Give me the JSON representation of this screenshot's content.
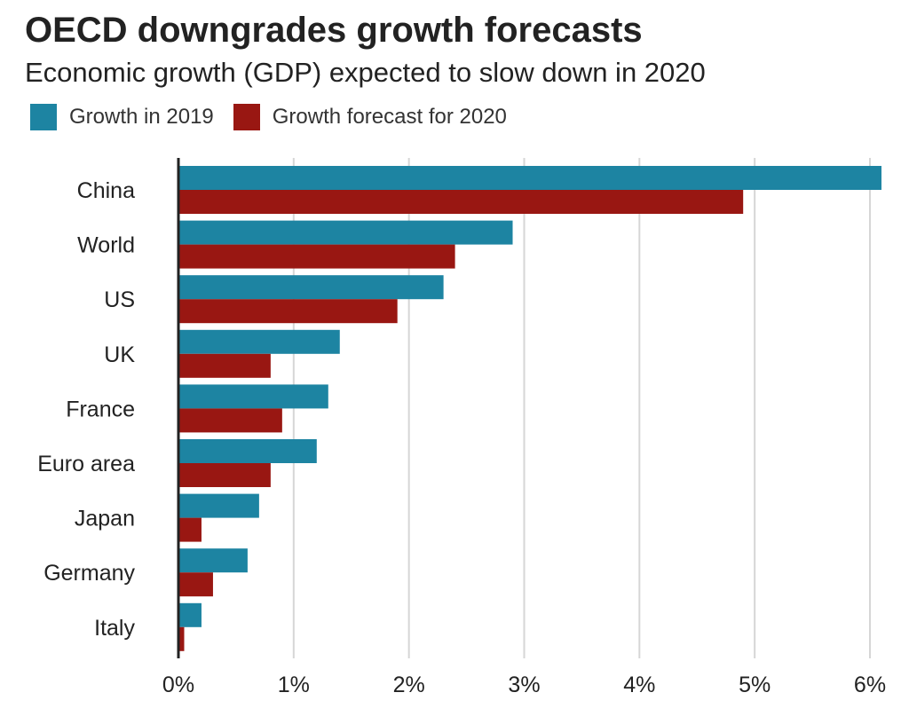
{
  "chart_data": {
    "type": "bar",
    "orientation": "horizontal",
    "title": "OECD downgrades growth forecasts",
    "subtitle": "Economic growth (GDP) expected to slow down in 2020",
    "categories": [
      "China",
      "World",
      "US",
      "UK",
      "France",
      "Euro area",
      "Japan",
      "Germany",
      "Italy"
    ],
    "series": [
      {
        "name": "Growth in 2019",
        "color": "#1d84a2",
        "values": [
          6.1,
          2.9,
          2.3,
          1.4,
          1.3,
          1.2,
          0.7,
          0.6,
          0.2
        ]
      },
      {
        "name": "Growth forecast for 2020",
        "color": "#991712",
        "values": [
          4.9,
          2.4,
          1.9,
          0.8,
          0.9,
          0.8,
          0.2,
          0.3,
          0.05
        ]
      }
    ],
    "xlim": [
      0,
      6
    ],
    "xticks": [
      0,
      1,
      2,
      3,
      4,
      5,
      6
    ],
    "xtick_labels": [
      "0%",
      "1%",
      "2%",
      "3%",
      "4%",
      "5%",
      "6%"
    ],
    "grid": "vertical",
    "legend": "top-left"
  }
}
